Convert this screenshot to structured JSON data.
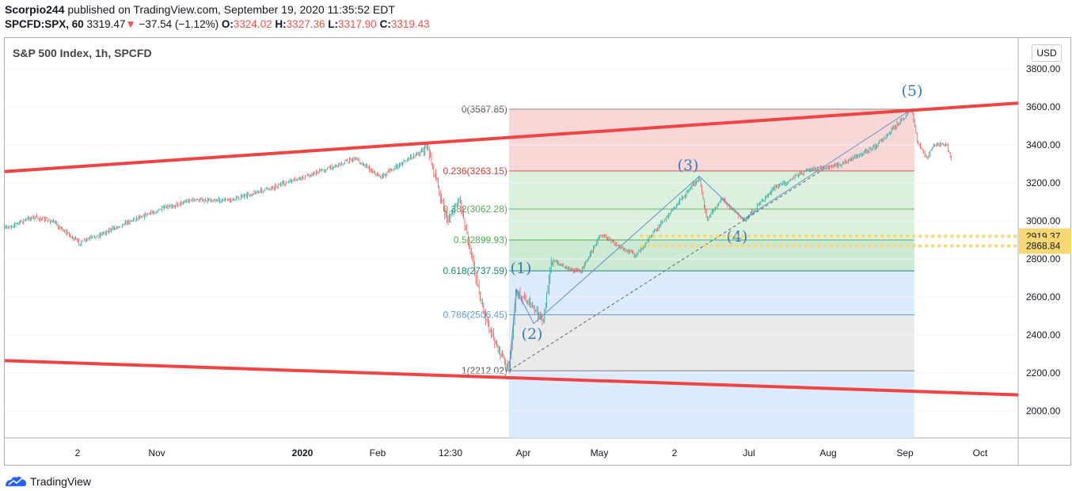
{
  "header": {
    "author": "Scorpio244",
    "published_text": "published on TradingView.com, September 19, 2020 11:35:52 EDT",
    "symbol": "SPCFD:SPX, 60",
    "last": "3319.47",
    "change": "−37.54 (−1.12%)",
    "open_label": "O:",
    "open": "3324.02",
    "high_label": "H:",
    "high": "3327.36",
    "low_label": "L:",
    "low": "3317.90",
    "close_label": "C:",
    "close": "3319.43"
  },
  "legend_title": "S&P 500 Index, 1h, SPCFD",
  "currency_button": "USD",
  "footer": {
    "brand": "TradingView",
    "icon": "tradingview-logo-icon"
  },
  "colors": {
    "channel": "#ef4444",
    "fib_red": "#f8d0d0",
    "fib_green": "#d6efd7",
    "fib_green2": "#c4e6cd",
    "fib_blue": "#d6e8fb",
    "fib_gray": "#e6e6e6",
    "wave": "#3a7bbf",
    "fib_line": "#7d8dbf",
    "level_box": "#f7d774",
    "candle_up": "#26a69a",
    "candle_down": "#ef5350"
  },
  "chart_data": {
    "type": "candlestick",
    "price_axis": {
      "ticks": [
        "3800.00",
        "3600.00",
        "3400.00",
        "3200.00",
        "3000.00",
        "2800.00",
        "2600.00",
        "2400.00",
        "2200.00",
        "2000.00"
      ],
      "range": [
        1870,
        3860
      ]
    },
    "time_axis": {
      "ticks": [
        "2",
        "Nov",
        "2020",
        "Feb",
        "12:30",
        "Apr",
        "May",
        "2",
        "Jul",
        "Aug",
        "Sep",
        "Oct"
      ],
      "bold": [
        "2020"
      ]
    },
    "fibonacci": [
      {
        "label": "0(3587.85)",
        "ratio": 0,
        "price": 3587.85
      },
      {
        "label": "0.236(3263.15)",
        "ratio": 0.236,
        "price": 3263.15
      },
      {
        "label": "0.382(3062.28)",
        "ratio": 0.382,
        "price": 3062.28
      },
      {
        "label": "0.5(2899.93)",
        "ratio": 0.5,
        "price": 2899.93
      },
      {
        "label": "0.618(2737.59)",
        "ratio": 0.618,
        "price": 2737.59
      },
      {
        "label": "0.786(2506.45)",
        "ratio": 0.786,
        "price": 2506.45
      },
      {
        "label": "1(2212.02)",
        "ratio": 1,
        "price": 2212.02
      }
    ],
    "horizontal_levels": [
      {
        "label": "2919.37",
        "price": 2919.37
      },
      {
        "label": "2868.84",
        "price": 2868.84
      }
    ],
    "wave_labels": [
      "(1)",
      "(2)",
      "(3)",
      "(4)",
      "(5)"
    ],
    "channel": {
      "upper": [
        {
          "date": "2019-09-01",
          "price": 3260
        },
        {
          "date": "2020-10-15",
          "price": 3620
        }
      ],
      "lower": [
        {
          "date": "2019-09-01",
          "price": 2265
        },
        {
          "date": "2020-10-15",
          "price": 2085
        }
      ]
    },
    "price_path": [
      [
        "2019-09-01",
        2960
      ],
      [
        "2019-09-12",
        3020
      ],
      [
        "2019-09-20",
        3000
      ],
      [
        "2019-10-01",
        2885
      ],
      [
        "2019-10-08",
        2920
      ],
      [
        "2019-10-25",
        3020
      ],
      [
        "2019-11-15",
        3110
      ],
      [
        "2019-12-02",
        3110
      ],
      [
        "2019-12-31",
        3230
      ],
      [
        "2020-01-21",
        3330
      ],
      [
        "2020-01-31",
        3230
      ],
      [
        "2020-02-19",
        3390
      ],
      [
        "2020-02-27",
        3000
      ],
      [
        "2020-03-03",
        3120
      ],
      [
        "2020-03-09",
        2750
      ],
      [
        "2020-03-12",
        2550
      ],
      [
        "2020-03-16",
        2400
      ],
      [
        "2020-03-23",
        2212
      ],
      [
        "2020-03-26",
        2630
      ],
      [
        "2020-03-31",
        2570
      ],
      [
        "2020-04-06",
        2470
      ],
      [
        "2020-04-09",
        2790
      ],
      [
        "2020-04-21",
        2730
      ],
      [
        "2020-04-29",
        2930
      ],
      [
        "2020-05-13",
        2820
      ],
      [
        "2020-05-27",
        3040
      ],
      [
        "2020-06-08",
        3230
      ],
      [
        "2020-06-11",
        3000
      ],
      [
        "2020-06-17",
        3120
      ],
      [
        "2020-06-26",
        3000
      ],
      [
        "2020-07-08",
        3170
      ],
      [
        "2020-07-22",
        3270
      ],
      [
        "2020-08-03",
        3290
      ],
      [
        "2020-08-18",
        3390
      ],
      [
        "2020-09-02",
        3587
      ],
      [
        "2020-09-04",
        3420
      ],
      [
        "2020-09-08",
        3330
      ],
      [
        "2020-09-11",
        3400
      ],
      [
        "2020-09-16",
        3400
      ],
      [
        "2020-09-18",
        3319
      ]
    ]
  }
}
